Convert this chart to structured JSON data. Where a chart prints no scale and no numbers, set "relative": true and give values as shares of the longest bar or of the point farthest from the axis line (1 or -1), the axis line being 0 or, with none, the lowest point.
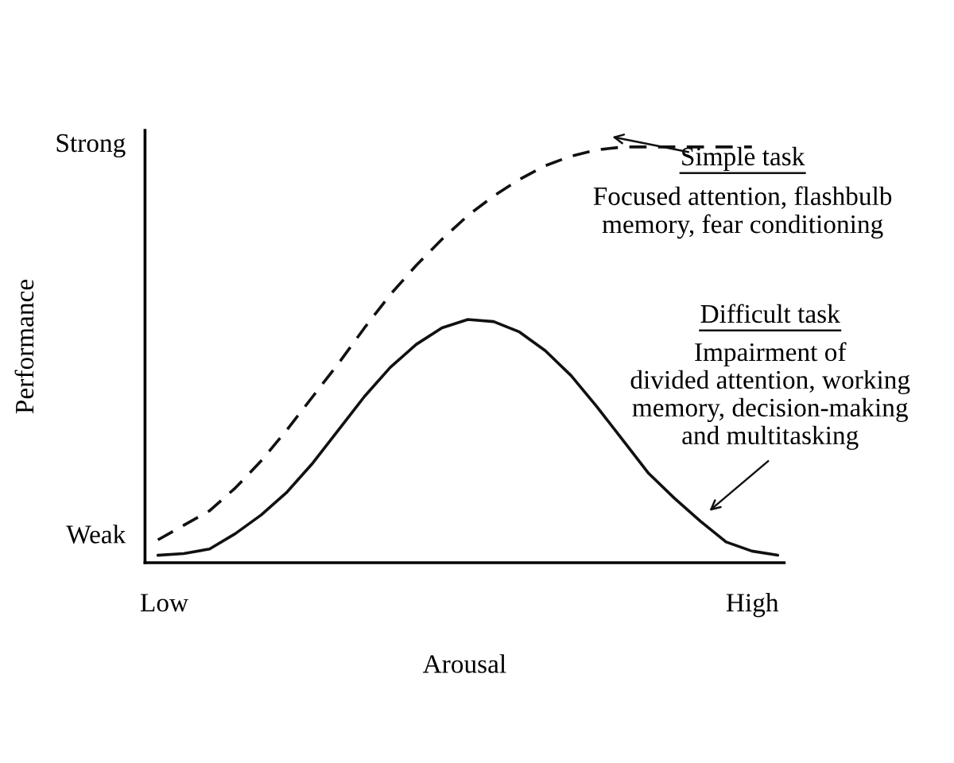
{
  "chart_data": {
    "type": "line",
    "xlabel": "Arousal",
    "ylabel": "Performance",
    "relative": true,
    "categories": [
      null,
      null,
      null,
      null,
      null,
      null,
      null,
      null,
      null,
      null,
      null,
      null,
      null,
      null,
      null,
      null,
      null,
      null,
      null,
      null,
      null,
      null,
      null,
      null,
      null
    ],
    "grid": false,
    "legend": false,
    "marker": "none",
    "series": [
      {
        "color": "#111111",
        "line_style": "dashed",
        "values": [
          0.055,
          0.09,
          0.125,
          0.18,
          0.245,
          0.32,
          0.4,
          0.48,
          0.565,
          0.645,
          0.715,
          0.778,
          0.835,
          0.882,
          0.922,
          0.955,
          0.978,
          0.993,
          1.0,
          1.0,
          1.0,
          1.0,
          1.0,
          1.0,
          null
        ]
      },
      {
        "color": "#111111",
        "line_style": "solid",
        "values": [
          0.018,
          0.022,
          0.033,
          0.07,
          0.115,
          0.17,
          0.24,
          0.32,
          0.4,
          0.47,
          0.525,
          0.565,
          0.585,
          0.58,
          0.555,
          0.51,
          0.45,
          0.375,
          0.295,
          0.215,
          0.155,
          0.1,
          0.05,
          0.028,
          0.018
        ]
      }
    ],
    "annotations": [
      "Simple task",
      "Focused attention, flashbulb\nmemory, fear conditioning",
      "Difficult task",
      "Impairment of\ndivided attention, working\nmemory, decision-making\nand multitasking",
      "Low",
      "High",
      "Weak",
      "Strong"
    ]
  }
}
